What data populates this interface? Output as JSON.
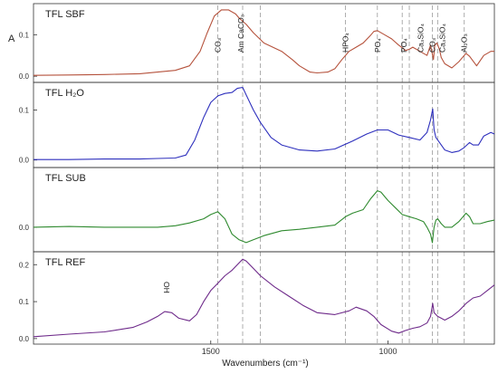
{
  "chart_data": {
    "type": "line",
    "xlabel": "Wavenumbers (cm⁻¹)",
    "ylabel": "A",
    "x_reversed": true,
    "xlim": [
      2000,
      700
    ],
    "xticks": [
      {
        "value": 1500,
        "label": "1500"
      },
      {
        "value": 1000,
        "label": "1000"
      }
    ],
    "vlines": [
      1480,
      1410,
      1360,
      1120,
      1030,
      960,
      940,
      875,
      860,
      785
    ],
    "panels": [
      {
        "title": "TFL SBF",
        "color": "#b5523c",
        "ylim": [
          -0.015,
          0.175
        ],
        "yticks": [
          {
            "value": 0.0,
            "label": "0.0"
          },
          {
            "value": 0.1,
            "label": "0.1"
          }
        ],
        "x": [
          2000,
          1900,
          1800,
          1700,
          1650,
          1600,
          1560,
          1530,
          1510,
          1490,
          1470,
          1450,
          1430,
          1420,
          1400,
          1380,
          1350,
          1300,
          1270,
          1250,
          1220,
          1200,
          1170,
          1150,
          1130,
          1110,
          1090,
          1070,
          1050,
          1040,
          1030,
          1010,
          990,
          970,
          950,
          940,
          930,
          910,
          890,
          880,
          872,
          868,
          862,
          855,
          850,
          840,
          820,
          800,
          780,
          770,
          750,
          730,
          710,
          700
        ],
        "y": [
          0.002,
          0.003,
          0.004,
          0.006,
          0.01,
          0.014,
          0.025,
          0.06,
          0.105,
          0.145,
          0.16,
          0.16,
          0.15,
          0.14,
          0.125,
          0.105,
          0.08,
          0.06,
          0.04,
          0.025,
          0.01,
          0.008,
          0.01,
          0.018,
          0.04,
          0.06,
          0.07,
          0.08,
          0.098,
          0.108,
          0.11,
          0.1,
          0.09,
          0.075,
          0.062,
          0.065,
          0.07,
          0.06,
          0.05,
          0.075,
          0.04,
          0.075,
          0.08,
          0.065,
          0.045,
          0.03,
          0.02,
          0.035,
          0.055,
          0.048,
          0.025,
          0.05,
          0.06,
          0.06
        ],
        "annotations": [
          {
            "label": "CO₃",
            "x": 1480
          },
          {
            "label": "Am CaCO₃",
            "x": 1415
          },
          {
            "label": "HPO₄",
            "x": 1120
          },
          {
            "label": "PO₄",
            "x": 1030
          },
          {
            "label": "PO₄",
            "x": 955
          },
          {
            "label": "Ca₃SiO₄",
            "x": 908
          },
          {
            "label": "CO₃",
            "x": 875
          },
          {
            "label": "Ca₃SiO₄",
            "x": 847
          },
          {
            "label": "Al₂O₃",
            "x": 785
          }
        ]
      },
      {
        "title": "TFL H₂O",
        "color": "#2d2fbd",
        "ylim": [
          -0.015,
          0.155
        ],
        "yticks": [
          {
            "value": 0.0,
            "label": "0.0"
          },
          {
            "value": 0.1,
            "label": "0.1"
          }
        ],
        "x": [
          2000,
          1900,
          1800,
          1700,
          1650,
          1600,
          1570,
          1545,
          1520,
          1500,
          1480,
          1460,
          1440,
          1425,
          1410,
          1400,
          1380,
          1360,
          1330,
          1300,
          1250,
          1200,
          1150,
          1100,
          1060,
          1030,
          1000,
          970,
          940,
          910,
          890,
          880,
          874,
          870,
          865,
          860,
          850,
          840,
          820,
          800,
          785,
          770,
          760,
          745,
          730,
          710,
          700
        ],
        "y": [
          0.001,
          0.001,
          0.002,
          0.002,
          0.003,
          0.004,
          0.01,
          0.04,
          0.085,
          0.115,
          0.128,
          0.133,
          0.135,
          0.143,
          0.145,
          0.13,
          0.1,
          0.075,
          0.045,
          0.03,
          0.02,
          0.018,
          0.022,
          0.038,
          0.052,
          0.06,
          0.06,
          0.05,
          0.045,
          0.04,
          0.055,
          0.08,
          0.102,
          0.06,
          0.045,
          0.04,
          0.03,
          0.02,
          0.015,
          0.018,
          0.025,
          0.035,
          0.03,
          0.03,
          0.048,
          0.055,
          0.052
        ]
      },
      {
        "title": "TFL SUB",
        "color": "#2f8a2f",
        "ylim": [
          -0.035,
          0.085
        ],
        "yticks": [
          {
            "value": 0.0,
            "label": "0.0"
          }
        ],
        "x": [
          2000,
          1900,
          1800,
          1700,
          1650,
          1600,
          1560,
          1520,
          1500,
          1480,
          1460,
          1440,
          1420,
          1400,
          1380,
          1350,
          1300,
          1250,
          1200,
          1150,
          1120,
          1100,
          1070,
          1050,
          1030,
          1020,
          1000,
          980,
          960,
          940,
          920,
          900,
          890,
          880,
          875,
          870,
          865,
          860,
          850,
          840,
          820,
          800,
          780,
          770,
          760,
          740,
          720,
          700
        ],
        "y": [
          0.0,
          0.001,
          0.0,
          0.0,
          0.0,
          0.002,
          0.006,
          0.012,
          0.018,
          0.022,
          0.012,
          -0.01,
          -0.018,
          -0.022,
          -0.018,
          -0.012,
          -0.005,
          -0.003,
          0.0,
          0.003,
          0.015,
          0.02,
          0.025,
          0.04,
          0.052,
          0.05,
          0.038,
          0.028,
          0.018,
          0.015,
          0.012,
          0.008,
          0.0,
          -0.01,
          -0.022,
          0.0,
          0.01,
          0.012,
          0.005,
          0.0,
          0.0,
          0.008,
          0.02,
          0.015,
          0.005,
          0.005,
          0.008,
          0.01
        ]
      },
      {
        "title": "TFL REF",
        "color": "#6e2a8a",
        "ylim": [
          -0.015,
          0.235
        ],
        "yticks": [
          {
            "value": 0.0,
            "label": "0.0"
          },
          {
            "value": 0.1,
            "label": "0.1"
          },
          {
            "value": 0.2,
            "label": "0.2"
          }
        ],
        "x": [
          2000,
          1900,
          1800,
          1720,
          1680,
          1650,
          1630,
          1610,
          1590,
          1560,
          1540,
          1520,
          1500,
          1480,
          1460,
          1440,
          1420,
          1410,
          1400,
          1380,
          1360,
          1320,
          1280,
          1240,
          1200,
          1150,
          1110,
          1090,
          1060,
          1040,
          1020,
          990,
          970,
          950,
          930,
          910,
          890,
          880,
          874,
          870,
          860,
          850,
          840,
          820,
          800,
          780,
          760,
          740,
          720,
          700
        ],
        "y": [
          0.005,
          0.012,
          0.018,
          0.03,
          0.045,
          0.06,
          0.073,
          0.07,
          0.055,
          0.048,
          0.065,
          0.1,
          0.13,
          0.15,
          0.17,
          0.185,
          0.205,
          0.215,
          0.21,
          0.19,
          0.17,
          0.14,
          0.115,
          0.09,
          0.07,
          0.065,
          0.075,
          0.085,
          0.075,
          0.06,
          0.038,
          0.02,
          0.015,
          0.022,
          0.028,
          0.032,
          0.042,
          0.06,
          0.095,
          0.07,
          0.06,
          0.055,
          0.05,
          0.06,
          0.075,
          0.095,
          0.11,
          0.115,
          0.13,
          0.145
        ]
      }
    ],
    "band_annotations": [
      {
        "panel": 3,
        "label": "OH",
        "x": 1630
      }
    ]
  }
}
